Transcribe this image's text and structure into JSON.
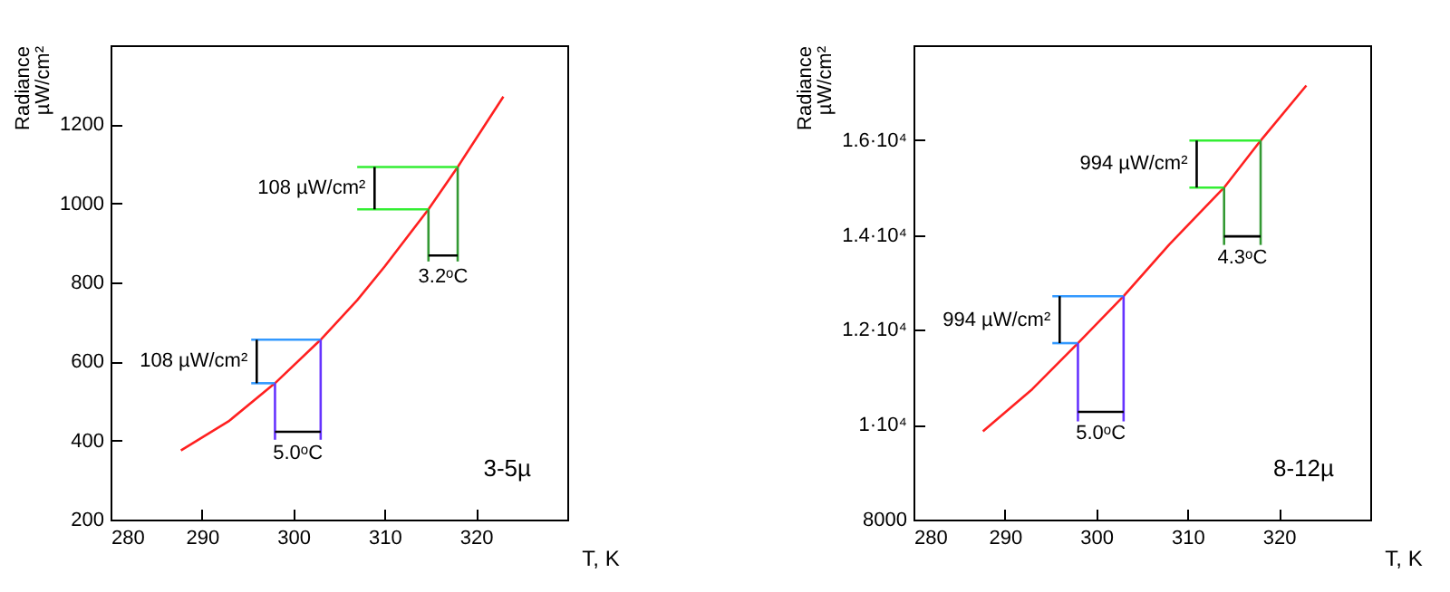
{
  "chart_data": [
    {
      "type": "line",
      "xlabel": "T, K",
      "ylabel": "Radiance\nµW/cm²",
      "xlim": [
        280,
        330
      ],
      "ylim": [
        200,
        1400
      ],
      "xticks": [
        280,
        290,
        300,
        310,
        320
      ],
      "yticks": [
        200,
        400,
        600,
        800,
        1000,
        1200
      ],
      "series": [
        {
          "type": "line",
          "color": "#ff2020",
          "x": [
            287.7,
            293,
            298,
            303,
            307,
            310,
            314.8,
            318,
            323
          ],
          "values": [
            375,
            450,
            545,
            655,
            755,
            840,
            985,
            1092,
            1270
          ]
        },
        {
          "type": "line",
          "color": "#3399ff",
          "x": [
            295.4,
            303
          ],
          "values": [
            655,
            655
          ]
        },
        {
          "type": "line",
          "color": "#3399ff",
          "x": [
            295.4,
            298
          ],
          "values": [
            545,
            545
          ]
        },
        {
          "type": "line",
          "color": "#6633ff",
          "x": [
            298,
            298
          ],
          "values": [
            545,
            402
          ]
        },
        {
          "type": "line",
          "color": "#6633ff",
          "x": [
            303,
            303
          ],
          "values": [
            655,
            402
          ]
        },
        {
          "type": "line",
          "color": "#33ee33",
          "x": [
            307,
            318
          ],
          "values": [
            1092,
            1092
          ]
        },
        {
          "type": "line",
          "color": "#33ee33",
          "x": [
            307,
            314.8
          ],
          "values": [
            985,
            985
          ]
        },
        {
          "type": "line",
          "color": "#339933",
          "x": [
            314.8,
            314.8
          ],
          "values": [
            985,
            853
          ]
        },
        {
          "type": "line",
          "color": "#339933",
          "x": [
            318,
            318
          ],
          "values": [
            1092,
            853
          ]
        },
        {
          "type": "line",
          "color": "#000000",
          "x": [
            296,
            296
          ],
          "values": [
            545,
            655
          ]
        },
        {
          "type": "line",
          "color": "#000000",
          "x": [
            298,
            303
          ],
          "values": [
            422,
            422
          ]
        },
        {
          "type": "line",
          "color": "#000000",
          "x": [
            308.9,
            308.9
          ],
          "values": [
            985,
            1092
          ]
        },
        {
          "type": "line",
          "color": "#000000",
          "x": [
            314.8,
            318
          ],
          "values": [
            868,
            868
          ]
        }
      ],
      "annotations": [
        {
          "text": "108 µW/cm²",
          "x": 296,
          "y": 600
        },
        {
          "text": "5.0ᵒC",
          "x": 300.5,
          "y": 422
        },
        {
          "text": "108 µW/cm²",
          "x": 308.9,
          "y": 1038
        },
        {
          "text": "3.2ᵒC",
          "x": 316.4,
          "y": 868
        },
        "3-5µ"
      ]
    },
    {
      "type": "line",
      "xlabel": "T, K",
      "ylabel": "Radiance\nµW/cm²",
      "xlim": [
        280,
        330
      ],
      "ylim": [
        8000,
        18000
      ],
      "xticks": [
        280,
        290,
        300,
        310,
        320
      ],
      "yticks": [
        8000,
        {
          "value": 10000,
          "label": "1·10⁴"
        },
        {
          "value": 12000,
          "label": "1.2·10⁴"
        },
        {
          "value": 14000,
          "label": "1.4·10⁴"
        },
        {
          "value": 16000,
          "label": "1.6·10⁴"
        }
      ],
      "series": [
        {
          "type": "line",
          "color": "#ff2020",
          "x": [
            287.6,
            293,
            298,
            303,
            308,
            314,
            318,
            323
          ],
          "values": [
            9860,
            10750,
            11720,
            12710,
            13800,
            15000,
            15990,
            17150
          ]
        },
        {
          "type": "line",
          "color": "#3399ff",
          "x": [
            295.2,
            303
          ],
          "values": [
            12710,
            12710
          ]
        },
        {
          "type": "line",
          "color": "#3399ff",
          "x": [
            295.2,
            298
          ],
          "values": [
            11720,
            11720
          ]
        },
        {
          "type": "line",
          "color": "#6633ff",
          "x": [
            298,
            298
          ],
          "values": [
            11720,
            10070
          ]
        },
        {
          "type": "line",
          "color": "#6633ff",
          "x": [
            303,
            303
          ],
          "values": [
            12710,
            10070
          ]
        },
        {
          "type": "line",
          "color": "#33ee33",
          "x": [
            310.2,
            318
          ],
          "values": [
            15990,
            15990
          ]
        },
        {
          "type": "line",
          "color": "#33ee33",
          "x": [
            310.2,
            314
          ],
          "values": [
            15000,
            15000
          ]
        },
        {
          "type": "line",
          "color": "#339933",
          "x": [
            314,
            314
          ],
          "values": [
            15000,
            13790
          ]
        },
        {
          "type": "line",
          "color": "#339933",
          "x": [
            318,
            318
          ],
          "values": [
            15990,
            13790
          ]
        },
        {
          "type": "line",
          "color": "#000000",
          "x": [
            296,
            296
          ],
          "values": [
            11720,
            12710
          ]
        },
        {
          "type": "line",
          "color": "#000000",
          "x": [
            298,
            303
          ],
          "values": [
            10270,
            10270
          ]
        },
        {
          "type": "line",
          "color": "#000000",
          "x": [
            311,
            311
          ],
          "values": [
            15000,
            15990
          ]
        },
        {
          "type": "line",
          "color": "#000000",
          "x": [
            314,
            318
          ],
          "values": [
            13970,
            13970
          ]
        }
      ],
      "annotations": [
        {
          "text": "994 µW/cm²",
          "x": 296,
          "y": 12200
        },
        {
          "text": "5.0ᵒC",
          "x": 300.5,
          "y": 10270
        },
        {
          "text": "994 µW/cm²",
          "x": 311,
          "y": 15500
        },
        {
          "text": "4.3ᵒC",
          "x": 316,
          "y": 13970
        },
        "8-12µ"
      ]
    }
  ]
}
